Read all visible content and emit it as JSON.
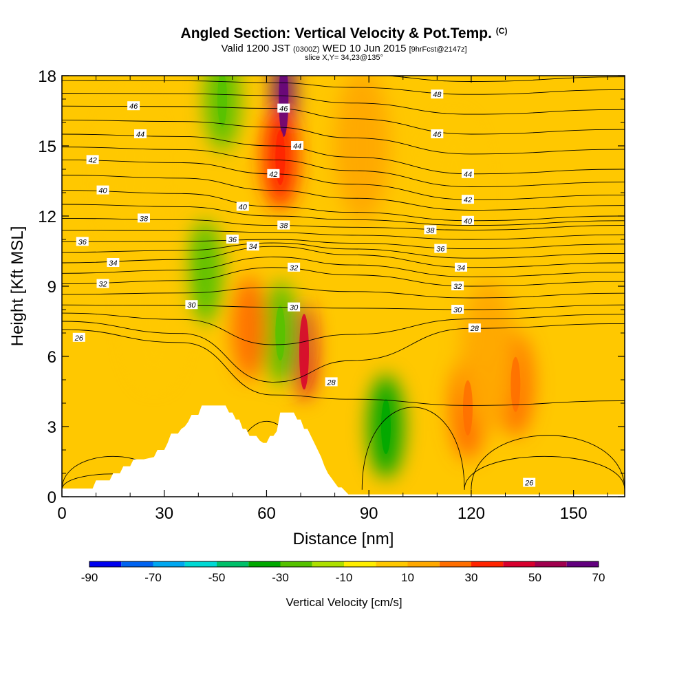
{
  "header": {
    "title": "Angled Section: Vertical Velocity & Pot.Temp.",
    "title_unit": "(C)",
    "valid_prefix": "Valid 1200 JST",
    "valid_zulu": "(0300Z)",
    "valid_date": "WED 10 Jun 2015",
    "forecast": "[9hrFcst@2147z]",
    "slice": "slice X,Y= 34,23@135°"
  },
  "chart_data": {
    "type": "heatmap",
    "xlabel": "Distance [nm]",
    "ylabel": "Height [Kft MSL]",
    "xlim": [
      0,
      165
    ],
    "ylim": [
      0,
      18
    ],
    "x_ticks": [
      "0",
      "30",
      "60",
      "90",
      "120",
      "150"
    ],
    "y_ticks": [
      "0",
      "3",
      "6",
      "9",
      "12",
      "15",
      "18"
    ],
    "grid": false,
    "legend": {
      "position": "bottom",
      "title": "Vertical Velocity [cm/s]",
      "tick_labels": [
        "-90",
        "-70",
        "-50",
        "-30",
        "-10",
        "10",
        "30",
        "50",
        "70"
      ],
      "levels": [
        -90,
        -80,
        -70,
        -60,
        -50,
        -40,
        -30,
        -20,
        -10,
        0,
        10,
        20,
        30,
        40,
        50,
        60,
        70
      ],
      "colors": [
        "#0000ee",
        "#0063f0",
        "#00a7f0",
        "#00d9d4",
        "#00c06a",
        "#00a800",
        "#56c200",
        "#aee000",
        "#ffee00",
        "#ffc800",
        "#ffa800",
        "#ff6e00",
        "#ff2400",
        "#d8002e",
        "#a0004e",
        "#62007e"
      ]
    },
    "vertical_velocity_features": [
      {
        "x": 47,
        "y": 17,
        "w": -30
      },
      {
        "x": 65,
        "y": 17,
        "w": 65
      },
      {
        "x": 64,
        "y": 14.5,
        "w": 38
      },
      {
        "x": 71,
        "y": 6.2,
        "w": 45
      },
      {
        "x": 64,
        "y": 7,
        "w": -28
      },
      {
        "x": 55,
        "y": 7.2,
        "w": 22
      },
      {
        "x": 95,
        "y": 3,
        "w": -32
      },
      {
        "x": 119,
        "y": 3.8,
        "w": 28
      },
      {
        "x": 133,
        "y": 4.8,
        "w": 28
      },
      {
        "x": 125,
        "y": 6,
        "w": 14
      },
      {
        "x": 42,
        "y": 9.6,
        "w": -22
      },
      {
        "x": 20,
        "y": 14,
        "w": 8
      },
      {
        "x": 27,
        "y": 8,
        "w": 8
      },
      {
        "x": 88,
        "y": 15,
        "w": 10
      },
      {
        "x": 115,
        "y": 13,
        "w": 9
      }
    ],
    "potential_temperature_labels": [
      {
        "text": "46",
        "x": 21,
        "y": 16.7
      },
      {
        "text": "44",
        "x": 23,
        "y": 15.5
      },
      {
        "text": "42",
        "x": 9,
        "y": 14.4
      },
      {
        "text": "40",
        "x": 12,
        "y": 13.1
      },
      {
        "text": "38",
        "x": 24,
        "y": 11.9
      },
      {
        "text": "36",
        "x": 6,
        "y": 10.9
      },
      {
        "text": "34",
        "x": 15,
        "y": 10.0
      },
      {
        "text": "32",
        "x": 12,
        "y": 9.1
      },
      {
        "text": "30",
        "x": 38,
        "y": 8.2
      },
      {
        "text": "26",
        "x": 5,
        "y": 6.8
      },
      {
        "text": "46",
        "x": 65,
        "y": 16.6
      },
      {
        "text": "44",
        "x": 69,
        "y": 15.0
      },
      {
        "text": "42",
        "x": 62,
        "y": 13.8
      },
      {
        "text": "40",
        "x": 53,
        "y": 12.4
      },
      {
        "text": "38",
        "x": 65,
        "y": 11.6
      },
      {
        "text": "36",
        "x": 50,
        "y": 11.0
      },
      {
        "text": "34",
        "x": 56,
        "y": 10.7
      },
      {
        "text": "32",
        "x": 68,
        "y": 9.8
      },
      {
        "text": "30",
        "x": 68,
        "y": 8.1
      },
      {
        "text": "28",
        "x": 79,
        "y": 4.9
      },
      {
        "text": "48",
        "x": 110,
        "y": 17.2
      },
      {
        "text": "46",
        "x": 110,
        "y": 15.5
      },
      {
        "text": "44",
        "x": 119,
        "y": 13.8
      },
      {
        "text": "42",
        "x": 119,
        "y": 12.7
      },
      {
        "text": "40",
        "x": 119,
        "y": 11.8
      },
      {
        "text": "38",
        "x": 108,
        "y": 11.4
      },
      {
        "text": "36",
        "x": 111,
        "y": 10.6
      },
      {
        "text": "34",
        "x": 117,
        "y": 9.8
      },
      {
        "text": "32",
        "x": 116,
        "y": 9.0
      },
      {
        "text": "30",
        "x": 116,
        "y": 8.0
      },
      {
        "text": "28",
        "x": 121,
        "y": 7.2
      },
      {
        "text": "26",
        "x": 137,
        "y": 0.6
      }
    ],
    "terrain_heights": [
      [
        0,
        0.35
      ],
      [
        9,
        0.35
      ],
      [
        10,
        0.7
      ],
      [
        14,
        0.7
      ],
      [
        15,
        1.0
      ],
      [
        17,
        1.0
      ],
      [
        18,
        1.3
      ],
      [
        20,
        1.3
      ],
      [
        21,
        1.6
      ],
      [
        24,
        1.6
      ],
      [
        27,
        1.7
      ],
      [
        28,
        2.0
      ],
      [
        30,
        2.0
      ],
      [
        31,
        2.3
      ],
      [
        32,
        2.7
      ],
      [
        34,
        2.7
      ],
      [
        35,
        2.9
      ],
      [
        36,
        3.0
      ],
      [
        37,
        3.2
      ],
      [
        38,
        3.5
      ],
      [
        40,
        3.5
      ],
      [
        41,
        3.9
      ],
      [
        44,
        3.9
      ],
      [
        45,
        3.9
      ],
      [
        47,
        3.9
      ],
      [
        48,
        3.9
      ],
      [
        49,
        3.6
      ],
      [
        50,
        3.6
      ],
      [
        51,
        3.3
      ],
      [
        52,
        3.3
      ],
      [
        53,
        2.9
      ],
      [
        54,
        2.9
      ],
      [
        55,
        2.6
      ],
      [
        57,
        2.6
      ],
      [
        58,
        2.4
      ],
      [
        59,
        2.3
      ],
      [
        60,
        2.3
      ],
      [
        61,
        2.6
      ],
      [
        62,
        2.6
      ],
      [
        63,
        2.8
      ],
      [
        64,
        3.6
      ],
      [
        67,
        3.6
      ],
      [
        68,
        3.6
      ],
      [
        69,
        3.3
      ],
      [
        70,
        3.3
      ],
      [
        71,
        2.9
      ],
      [
        72,
        2.9
      ],
      [
        73,
        2.6
      ],
      [
        74,
        2.3
      ],
      [
        75,
        2.0
      ],
      [
        76,
        1.7
      ],
      [
        77,
        1.3
      ],
      [
        78,
        1.0
      ],
      [
        79,
        0.8
      ],
      [
        80,
        0.6
      ],
      [
        81,
        0.4
      ],
      [
        82,
        0.4
      ],
      [
        83,
        0.25
      ],
      [
        84,
        0.1
      ],
      [
        165,
        0.1
      ]
    ]
  }
}
